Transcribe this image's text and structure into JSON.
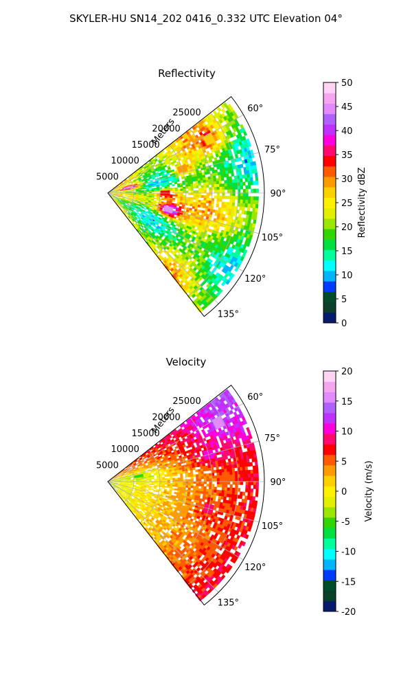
{
  "figure": {
    "suptitle": "SKYLER-HU  SN14_202  0416_0.332 UTC Elevation 04°"
  },
  "chart_data": [
    {
      "type": "heatmap",
      "subtype": "polar-sector (PPI radar scan)",
      "title": "Reflectivity",
      "radial_axis_label": "Meters",
      "radial_ticks": [
        "5000",
        "10000",
        "15000",
        "20000",
        "25000"
      ],
      "radial_lim": [
        0,
        30000
      ],
      "angle_ticks": [
        "60°",
        "75°",
        "90°",
        "105°",
        "120°",
        "135°"
      ],
      "angle_range_deg": [
        52,
        142
      ],
      "grid": true,
      "colorbar": {
        "label": "Reflectivity dBZ",
        "ticks": [
          "0",
          "5",
          "10",
          "15",
          "20",
          "25",
          "30",
          "35",
          "40",
          "45",
          "50"
        ],
        "range": [
          0,
          50
        ],
        "colors": [
          "#061a6e",
          "#0a3f2a",
          "#004c29",
          "#003cff",
          "#00b4ff",
          "#00ffff",
          "#00ff9c",
          "#00e040",
          "#33d600",
          "#9ae600",
          "#e0f000",
          "#fff000",
          "#ffd000",
          "#ff9b00",
          "#ff5a00",
          "#ff0000",
          "#ff0a6e",
          "#ff00dc",
          "#c030ff",
          "#b060ff",
          "#e48aff",
          "#f4a6f0",
          "#ffd4f4"
        ]
      },
      "cells": [
        {
          "angle": 75,
          "range": 4000,
          "value": 45
        },
        {
          "angle": 105,
          "range": 12000,
          "value": 44
        },
        {
          "angle": 90,
          "range": 11000,
          "value": 34
        },
        {
          "angle": 72,
          "range": 15000,
          "value": 30
        },
        {
          "angle": 62,
          "range": 22000,
          "value": 28
        }
      ]
    },
    {
      "type": "heatmap",
      "subtype": "polar-sector (PPI radar scan)",
      "title": "Velocity",
      "radial_axis_label": "Meters",
      "radial_ticks": [
        "5000",
        "10000",
        "15000",
        "20000",
        "25000"
      ],
      "radial_lim": [
        0,
        30000
      ],
      "angle_ticks": [
        "60°",
        "75°",
        "90°",
        "105°",
        "120°",
        "135°"
      ],
      "angle_range_deg": [
        52,
        142
      ],
      "grid": true,
      "colorbar": {
        "label": "Velocity (m/s)",
        "ticks": [
          "-20",
          "-15",
          "-10",
          "-5",
          "0",
          "5",
          "10",
          "15",
          "20"
        ],
        "range": [
          -20,
          20
        ],
        "colors": [
          "#061a6e",
          "#0a3f2a",
          "#004c29",
          "#003cff",
          "#00b4ff",
          "#00ffff",
          "#00ff9c",
          "#00e040",
          "#33d600",
          "#9ae600",
          "#e0f000",
          "#fff000",
          "#ffd000",
          "#ff9b00",
          "#ff5a00",
          "#ff0000",
          "#ff0a6e",
          "#ff00dc",
          "#c030ff",
          "#b060ff",
          "#e48aff",
          "#f4a6f0",
          "#ffd4f4"
        ]
      },
      "cells": [
        {
          "angle": 62,
          "range": 24000,
          "value": 15
        },
        {
          "angle": 75,
          "range": 20000,
          "value": 11
        },
        {
          "angle": 80,
          "range": 6000,
          "value": -6
        },
        {
          "angle": 110,
          "range": 15000,
          "value": 3
        },
        {
          "angle": 105,
          "range": 20000,
          "value": 8
        }
      ]
    }
  ]
}
